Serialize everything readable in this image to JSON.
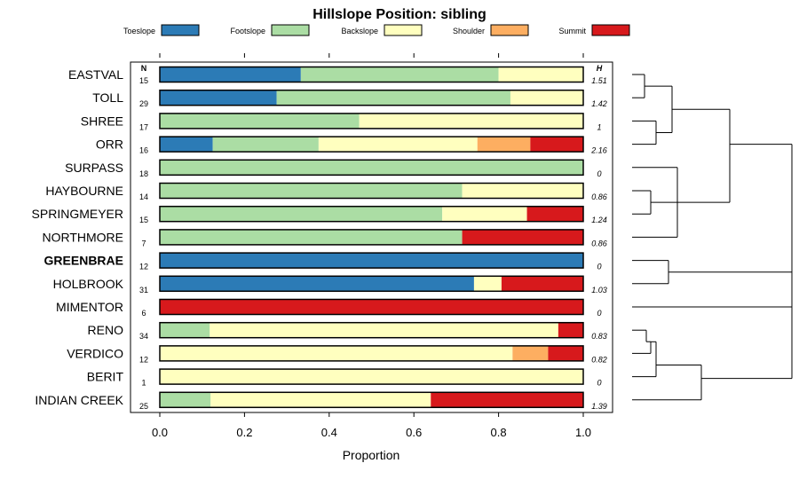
{
  "chart_data": {
    "type": "bar",
    "stacked": true,
    "orientation": "horizontal",
    "title": "Hillslope Position: sibling",
    "xlabel": "Proportion",
    "xlim": [
      0,
      1
    ],
    "xticks": [
      "0.0",
      "0.2",
      "0.4",
      "0.6",
      "0.8",
      "1.0"
    ],
    "n_header": "N",
    "h_header": "H",
    "legend_position": "top",
    "legend": [
      {
        "name": "Toeslope",
        "color": "#2c7bb6"
      },
      {
        "name": "Footslope",
        "color": "#abdda4"
      },
      {
        "name": "Backslope",
        "color": "#ffffbf"
      },
      {
        "name": "Shoulder",
        "color": "#fdae61"
      },
      {
        "name": "Summit",
        "color": "#d7191c"
      }
    ],
    "series": [
      {
        "name": "Toeslope",
        "values": [
          0.333,
          0.276,
          0,
          0.125,
          0,
          0,
          0,
          0,
          1,
          0.742,
          0,
          0,
          0,
          0,
          0
        ]
      },
      {
        "name": "Footslope",
        "values": [
          0.467,
          0.552,
          0.471,
          0.25,
          1,
          0.714,
          0.667,
          0.714,
          0,
          0,
          0,
          0.118,
          0,
          0,
          0.12
        ]
      },
      {
        "name": "Backslope",
        "values": [
          0.2,
          0.172,
          0.529,
          0.375,
          0,
          0.286,
          0.2,
          0,
          0,
          0.065,
          0,
          0.823,
          0.833,
          1,
          0.52
        ]
      },
      {
        "name": "Shoulder",
        "values": [
          0,
          0,
          0,
          0.125,
          0,
          0,
          0,
          0,
          0,
          0,
          0,
          0,
          0.084,
          0,
          0
        ]
      },
      {
        "name": "Summit",
        "values": [
          0,
          0,
          0,
          0.125,
          0,
          0,
          0.133,
          0.286,
          0,
          0.193,
          1,
          0.059,
          0.083,
          0,
          0.36
        ]
      }
    ],
    "rows": [
      {
        "label": "EASTVAL",
        "n": "15",
        "h": "1.51",
        "bold": false
      },
      {
        "label": "TOLL",
        "n": "29",
        "h": "1.42",
        "bold": false
      },
      {
        "label": "SHREE",
        "n": "17",
        "h": "1",
        "bold": false
      },
      {
        "label": "ORR",
        "n": "16",
        "h": "2.16",
        "bold": false
      },
      {
        "label": "SURPASS",
        "n": "18",
        "h": "0",
        "bold": false
      },
      {
        "label": "HAYBOURNE",
        "n": "14",
        "h": "0.86",
        "bold": false
      },
      {
        "label": "SPRINGMEYER",
        "n": "15",
        "h": "1.24",
        "bold": false
      },
      {
        "label": "NORTHMORE",
        "n": "7",
        "h": "0.86",
        "bold": false
      },
      {
        "label": "GREENBRAE",
        "n": "12",
        "h": "0",
        "bold": true
      },
      {
        "label": "HOLBROOK",
        "n": "31",
        "h": "1.03",
        "bold": false
      },
      {
        "label": "MIMENTOR",
        "n": "6",
        "h": "0",
        "bold": false
      },
      {
        "label": "RENO",
        "n": "34",
        "h": "0.83",
        "bold": false
      },
      {
        "label": "VERDICO",
        "n": "12",
        "h": "0.82",
        "bold": false
      },
      {
        "label": "BERIT",
        "n": "1",
        "h": "0",
        "bold": false
      },
      {
        "label": "INDIAN CREEK",
        "n": "25",
        "h": "1.39",
        "bold": false
      }
    ]
  }
}
